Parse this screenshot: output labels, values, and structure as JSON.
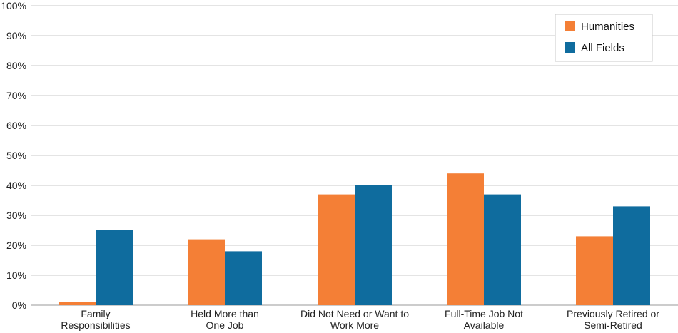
{
  "chart_data": {
    "type": "bar",
    "title": "",
    "xlabel": "",
    "ylabel": "",
    "ylim": [
      0,
      100
    ],
    "y_ticks": [
      0,
      10,
      20,
      30,
      40,
      50,
      60,
      70,
      80,
      90,
      100
    ],
    "y_tick_labels": [
      "0%",
      "10%",
      "20%",
      "30%",
      "40%",
      "50%",
      "60%",
      "70%",
      "80%",
      "90%",
      "100%"
    ],
    "grid": true,
    "legend_position": "top-right",
    "categories": [
      [
        "Family",
        "Responsibilities"
      ],
      [
        "Held More than",
        "One Job"
      ],
      [
        "Did Not Need or Want to",
        "Work More"
      ],
      [
        "Full-Time Job Not",
        "Available"
      ],
      [
        "Previously Retired or",
        "Semi-Retired"
      ]
    ],
    "series": [
      {
        "name": "Humanities",
        "color": "#f47f36",
        "values": [
          1,
          22,
          37,
          44,
          23
        ]
      },
      {
        "name": "All Fields",
        "color": "#0f6c9e",
        "values": [
          25,
          18,
          40,
          37,
          33
        ]
      }
    ]
  }
}
